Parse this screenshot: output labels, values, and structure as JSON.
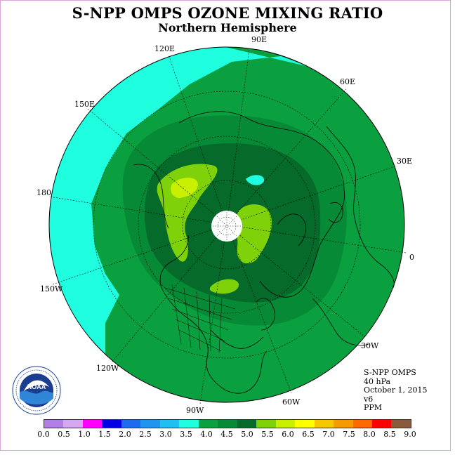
{
  "title": "S-NPP OMPS OZONE MIXING RATIO",
  "subtitle": "Northern Hemisphere",
  "longitude_labels": {
    "lon_90e": "90E",
    "lon_60e": "60E",
    "lon_30e": "30E",
    "lon_0": "0",
    "lon_30w": "30W",
    "lon_60w": "60W",
    "lon_90w": "90W",
    "lon_120w": "120W",
    "lon_150w": "150W",
    "lon_180": "180",
    "lon_150e": "150E",
    "lon_120e": "120E"
  },
  "info": {
    "instrument": "S-NPP OMPS",
    "level": "40 hPa",
    "date": "October 1, 2015",
    "version": "v6",
    "units": "PPM"
  },
  "logo": {
    "text": "NOAA",
    "ring_text": "NATIONAL OCEANIC AND ATMOSPHERIC ADMINISTRATION · U.S. DEPARTMENT OF COMMERCE"
  },
  "colorbar": {
    "colors": [
      "#b57ee6",
      "#d6a8f0",
      "#ff00ff",
      "#0000e0",
      "#1f6bf0",
      "#1f95f0",
      "#1fbff0",
      "#1fffe0",
      "#0aa040",
      "#078a35",
      "#056a2a",
      "#7fd20a",
      "#c8f000",
      "#ffff00",
      "#f5c800",
      "#f59b00",
      "#ff6a00",
      "#ff0000",
      "#8b5a3a"
    ],
    "ticks": [
      "0.0",
      "0.5",
      "1.0",
      "1.5",
      "2.0",
      "2.5",
      "3.0",
      "3.5",
      "4.0",
      "4.5",
      "5.0",
      "5.5",
      "6.0",
      "6.5",
      "7.0",
      "7.5",
      "8.0",
      "8.5",
      "9.0"
    ]
  },
  "map_colors": {
    "level_3_5": "#1fffe0",
    "level_4_0": "#0aa040",
    "level_4_5": "#078a35",
    "level_5_0": "#056a2a",
    "level_5_5": "#7fd20a",
    "level_6_0": "#c8f000",
    "pole_missing": "#ffffff"
  }
}
